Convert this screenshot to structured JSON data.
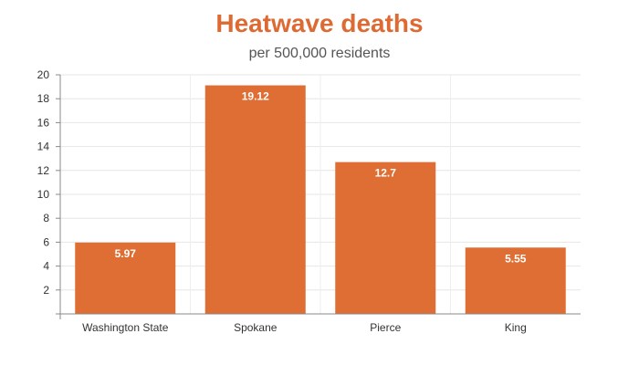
{
  "chart_data": {
    "type": "bar",
    "title": "Heatwave deaths",
    "subtitle": "per 500,000 residents",
    "categories": [
      "Washington State",
      "Spokane",
      "Pierce",
      "King"
    ],
    "values": [
      5.97,
      19.12,
      12.7,
      5.55
    ],
    "data_labels": [
      "5.97",
      "19.12",
      "12.7",
      "5.55"
    ],
    "ylim": [
      0,
      20
    ],
    "yticks": [
      2,
      4,
      6,
      8,
      10,
      12,
      14,
      16,
      18,
      20
    ],
    "grid": true,
    "bar_color": "#de6e33",
    "title_color": "#de6a33"
  }
}
